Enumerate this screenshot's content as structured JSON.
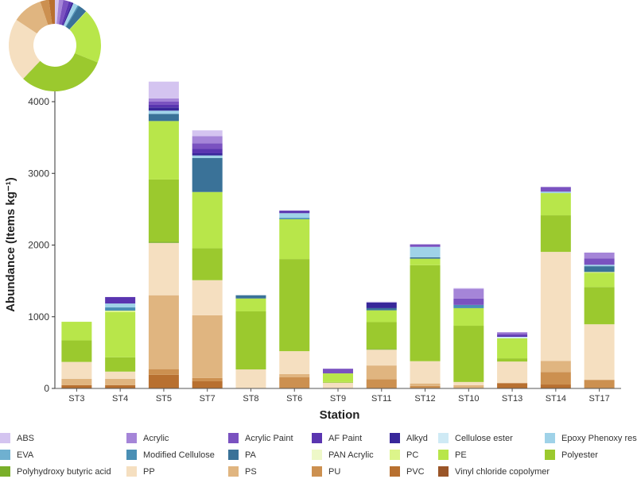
{
  "chart_data": {
    "type": "bar",
    "stacked": true,
    "xlabel": "Station",
    "ylabel": "Abundance (Items kg⁻¹)",
    "ylim": [
      0,
      4300
    ],
    "yticks": [
      0,
      1000,
      2000,
      3000,
      4000
    ],
    "grid": false,
    "legend": "bottom",
    "inset": {
      "type": "donut",
      "position": "top-left",
      "description_source": "series totals"
    },
    "categories": [
      "ST3",
      "ST4",
      "ST5",
      "ST7",
      "ST8",
      "ST6",
      "ST9",
      "ST11",
      "ST12",
      "ST10",
      "ST13",
      "ST14",
      "ST17"
    ],
    "series": [
      {
        "name": "Vinyl chloride copolymer",
        "color": "#9a5528",
        "values": [
          0,
          0,
          0,
          0,
          0,
          0,
          0,
          0,
          0,
          0,
          0,
          0,
          0
        ]
      },
      {
        "name": "PVC",
        "color": "#b87030",
        "values": [
          45,
          45,
          190,
          100,
          0,
          0,
          0,
          0,
          0,
          0,
          75,
          55,
          0
        ]
      },
      {
        "name": "PU",
        "color": "#cc9050",
        "values": [
          0,
          0,
          80,
          45,
          0,
          155,
          0,
          130,
          35,
          0,
          0,
          175,
          120
        ]
      },
      {
        "name": "PS",
        "color": "#e0b580",
        "values": [
          90,
          90,
          1030,
          875,
          0,
          45,
          0,
          190,
          35,
          45,
          0,
          155,
          0
        ]
      },
      {
        "name": "PP",
        "color": "#f5dfc0",
        "values": [
          235,
          100,
          730,
          490,
          265,
          320,
          80,
          220,
          310,
          45,
          300,
          1520,
          775
        ]
      },
      {
        "name": "Polyhydroxy butyric acid",
        "color": "#7aaf2a",
        "values": [
          0,
          0,
          15,
          0,
          0,
          0,
          0,
          10,
          0,
          0,
          0,
          0,
          0
        ]
      },
      {
        "name": "Polyester",
        "color": "#9bc92e",
        "values": [
          300,
          200,
          870,
          445,
          810,
          1285,
          10,
          375,
          1340,
          785,
          45,
          510,
          520
        ]
      },
      {
        "name": "PE",
        "color": "#b8e64a",
        "values": [
          260,
          630,
          815,
          785,
          180,
          555,
          120,
          165,
          90,
          245,
          280,
          310,
          200
        ]
      },
      {
        "name": "PC",
        "color": "#dcf58a",
        "values": [
          0,
          20,
          0,
          0,
          0,
          0,
          0,
          0,
          0,
          0,
          0,
          0,
          10
        ]
      },
      {
        "name": "PAN Acrylic",
        "color": "#eef8c8",
        "values": [
          0,
          0,
          0,
          0,
          0,
          0,
          0,
          0,
          0,
          0,
          0,
          0,
          0
        ]
      },
      {
        "name": "PA",
        "color": "#3a7298",
        "values": [
          0,
          0,
          100,
          475,
          45,
          0,
          0,
          30,
          20,
          0,
          0,
          0,
          80
        ]
      },
      {
        "name": "Modified Cellulose",
        "color": "#4a8fb5",
        "values": [
          0,
          45,
          0,
          0,
          0,
          20,
          0,
          0,
          0,
          45,
          0,
          0,
          0
        ]
      },
      {
        "name": "EVA",
        "color": "#6fb0d0",
        "values": [
          0,
          0,
          0,
          0,
          0,
          0,
          0,
          0,
          0,
          0,
          0,
          0,
          0
        ]
      },
      {
        "name": "Epoxy Phenoxy resin",
        "color": "#9fd2e8",
        "values": [
          0,
          55,
          45,
          35,
          0,
          65,
          0,
          0,
          145,
          0,
          0,
          20,
          20
        ]
      },
      {
        "name": "Cellulose ester",
        "color": "#cfeaf5",
        "values": [
          0,
          0,
          0,
          0,
          0,
          0,
          0,
          0,
          0,
          0,
          20,
          0,
          0
        ]
      },
      {
        "name": "Alkyd",
        "color": "#38279a",
        "values": [
          0,
          0,
          45,
          30,
          0,
          0,
          0,
          80,
          0,
          0,
          0,
          0,
          0
        ]
      },
      {
        "name": "AF Paint",
        "color": "#5a35b0",
        "values": [
          0,
          90,
          40,
          65,
          0,
          35,
          0,
          0,
          0,
          0,
          25,
          0,
          0
        ]
      },
      {
        "name": "Acrylic Paint",
        "color": "#7a52c0",
        "values": [
          0,
          0,
          40,
          75,
          0,
          0,
          65,
          0,
          35,
          90,
          20,
          65,
          90
        ]
      },
      {
        "name": "Acrylic",
        "color": "#a585d8",
        "values": [
          0,
          0,
          45,
          100,
          0,
          0,
          0,
          0,
          0,
          135,
          20,
          0,
          80
        ]
      },
      {
        "name": "ABS",
        "color": "#d4c4f0",
        "values": [
          0,
          0,
          235,
          80,
          0,
          0,
          0,
          10,
          0,
          10,
          0,
          0,
          0
        ]
      }
    ],
    "legend_order": [
      "ABS",
      "Acrylic",
      "Acrylic Paint",
      "AF Paint",
      "Alkyd",
      "Cellulose ester",
      "Epoxy Phenoxy resin",
      "EVA",
      "Modified Cellulose",
      "PA",
      "PAN Acrylic",
      "PC",
      "PE",
      "Polyester",
      "Polyhydroxy butyric acid",
      "PP",
      "PS",
      "PU",
      "PVC",
      "Vinyl chloride copolymer"
    ]
  }
}
